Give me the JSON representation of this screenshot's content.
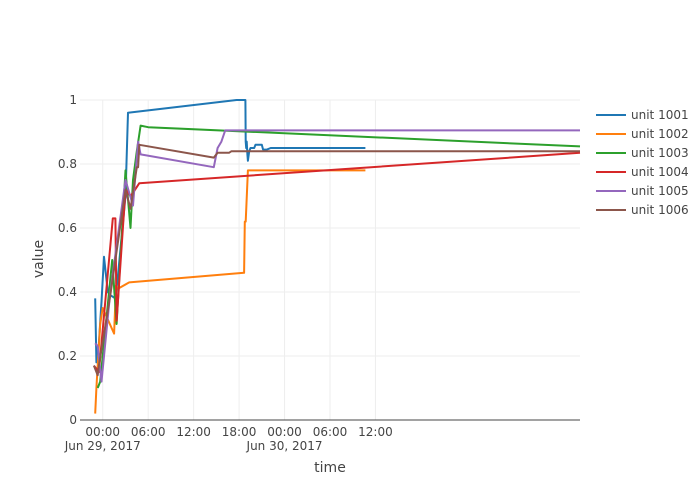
{
  "chart_data": {
    "type": "line",
    "xlabel": "time",
    "ylabel": "value",
    "xlim": [
      "2017-06-28 21:00",
      "2017-07-01 15:00"
    ],
    "ylim": [
      0,
      1
    ],
    "grid": true,
    "legend_position": "top-right",
    "x_ticks": [
      {
        "value": "2017-06-29 00:00",
        "label": "00:00",
        "sublabel": "Jun 29, 2017"
      },
      {
        "value": "2017-06-29 06:00",
        "label": "06:00",
        "sublabel": ""
      },
      {
        "value": "2017-06-29 12:00",
        "label": "12:00",
        "sublabel": ""
      },
      {
        "value": "2017-06-29 18:00",
        "label": "18:00",
        "sublabel": ""
      },
      {
        "value": "2017-06-30 00:00",
        "label": "00:00",
        "sublabel": "Jun 30, 2017"
      },
      {
        "value": "2017-06-30 06:00",
        "label": "06:00",
        "sublabel": ""
      },
      {
        "value": "2017-06-30 12:00",
        "label": "12:00",
        "sublabel": ""
      }
    ],
    "y_ticks": [
      {
        "value": 0,
        "label": "0"
      },
      {
        "value": 0.2,
        "label": "0.2"
      },
      {
        "value": 0.4,
        "label": "0.4"
      },
      {
        "value": 0.6,
        "label": "0.6"
      },
      {
        "value": 0.8,
        "label": "0.8"
      },
      {
        "value": 1,
        "label": "1"
      }
    ],
    "series": [
      {
        "name": "unit 1001",
        "color": "#1f77b4",
        "x": [
          "2017-06-28 23:00",
          "2017-06-28 23:10",
          "2017-06-28 23:30",
          "2017-06-28 23:50",
          "2017-06-29 00:10",
          "2017-06-29 00:40",
          "2017-06-29 01:00",
          "2017-06-29 01:40",
          "2017-06-29 02:00",
          "2017-06-29 03:00",
          "2017-06-29 03:20",
          "2017-06-29 17:40",
          "2017-06-29 18:50",
          "2017-06-29 18:52",
          "2017-06-29 18:56",
          "2017-06-29 19:00",
          "2017-06-29 19:06",
          "2017-06-29 19:10",
          "2017-06-29 19:20",
          "2017-06-29 19:30",
          "2017-06-29 20:00",
          "2017-06-29 20:10",
          "2017-06-29 21:00",
          "2017-06-29 21:10",
          "2017-06-29 21:40",
          "2017-06-29 22:10",
          "2017-06-29 22:40",
          "2017-06-30 10:40"
        ],
        "y": [
          0.38,
          0.18,
          0.24,
          0.37,
          0.51,
          0.4,
          0.39,
          0.38,
          0.45,
          0.7,
          0.96,
          1.0,
          1.0,
          0.87,
          0.85,
          0.87,
          0.83,
          0.81,
          0.84,
          0.85,
          0.85,
          0.86,
          0.86,
          0.845,
          0.845,
          0.85,
          0.85,
          0.85
        ]
      },
      {
        "name": "unit 1002",
        "color": "#ff7f0e",
        "x": [
          "2017-06-28 23:00",
          "2017-06-28 23:10",
          "2017-06-28 23:20",
          "2017-06-28 23:40",
          "2017-06-29 00:00",
          "2017-06-29 01:30",
          "2017-06-29 01:45",
          "2017-06-29 02:00",
          "2017-06-29 03:30",
          "2017-06-29 18:40",
          "2017-06-29 18:45",
          "2017-06-29 18:52",
          "2017-06-29 19:10",
          "2017-06-29 19:20",
          "2017-06-30 10:40"
        ],
        "y": [
          0.02,
          0.1,
          0.17,
          0.3,
          0.35,
          0.27,
          0.42,
          0.41,
          0.43,
          0.46,
          0.62,
          0.62,
          0.78,
          0.78,
          0.78
        ]
      },
      {
        "name": "unit 1003",
        "color": "#2ca02c",
        "x": [
          "2017-06-28 23:20",
          "2017-06-28 23:40",
          "2017-06-29 01:15",
          "2017-06-29 01:50",
          "2017-06-29 03:00",
          "2017-06-29 03:40",
          "2017-06-29 04:00",
          "2017-06-29 04:30",
          "2017-06-29 05:00",
          "2017-06-29 06:00",
          "2017-07-01 15:00"
        ],
        "y": [
          0.1,
          0.12,
          0.5,
          0.3,
          0.78,
          0.6,
          0.75,
          0.84,
          0.92,
          0.915,
          0.855
        ]
      },
      {
        "name": "unit 1004",
        "color": "#d62728",
        "x": [
          "2017-06-28 22:50",
          "2017-06-28 23:30",
          "2017-06-29 01:20",
          "2017-06-29 01:40",
          "2017-06-29 01:50",
          "2017-06-29 03:00",
          "2017-06-29 03:20",
          "2017-06-29 03:40",
          "2017-06-29 04:00",
          "2017-06-29 04:50",
          "2017-07-01 15:00"
        ],
        "y": [
          0.17,
          0.15,
          0.63,
          0.63,
          0.31,
          0.72,
          0.71,
          0.7,
          0.71,
          0.74,
          0.835
        ]
      },
      {
        "name": "unit 1005",
        "color": "#9467bd",
        "x": [
          "2017-06-28 23:00",
          "2017-06-28 23:20",
          "2017-06-28 23:50",
          "2017-06-29 01:00",
          "2017-06-29 03:00",
          "2017-06-29 04:00",
          "2017-06-29 04:40",
          "2017-06-29 05:00",
          "2017-06-29 14:40",
          "2017-06-29 15:10",
          "2017-06-29 15:40",
          "2017-06-29 16:10",
          "2017-06-29 16:30",
          "2017-07-01 15:00"
        ],
        "y": [
          0.24,
          0.23,
          0.12,
          0.4,
          0.75,
          0.67,
          0.87,
          0.83,
          0.79,
          0.85,
          0.87,
          0.905,
          0.905,
          0.905
        ]
      },
      {
        "name": "unit 1006",
        "color": "#8c564b",
        "x": [
          "2017-06-28 22:50",
          "2017-06-28 23:20",
          "2017-06-28 23:30",
          "2017-06-29 01:00",
          "2017-06-29 03:00",
          "2017-06-29 03:40",
          "2017-06-29 04:30",
          "2017-06-29 04:40",
          "2017-06-29 04:50",
          "2017-06-29 14:40",
          "2017-06-29 15:10",
          "2017-06-29 16:00",
          "2017-06-29 16:40",
          "2017-06-29 17:00",
          "2017-07-01 15:00"
        ],
        "y": [
          0.17,
          0.14,
          0.17,
          0.39,
          0.72,
          0.66,
          0.79,
          0.79,
          0.86,
          0.82,
          0.835,
          0.835,
          0.835,
          0.84,
          0.84
        ]
      }
    ]
  }
}
